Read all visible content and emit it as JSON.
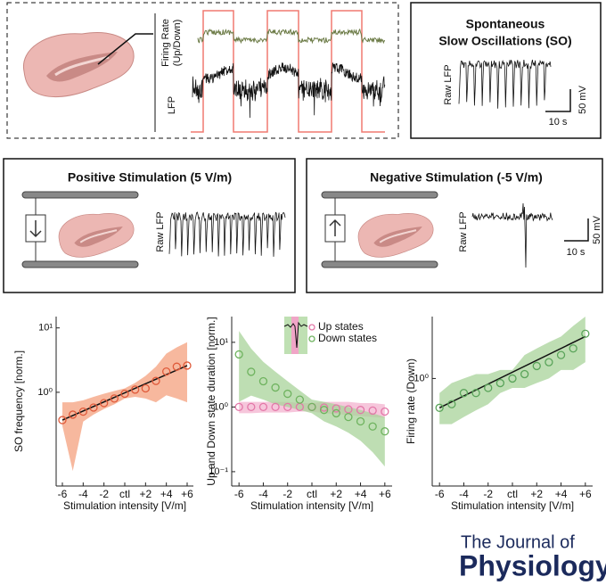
{
  "panels": {
    "overview": {
      "firing_rate_label": [
        "Firing Rate",
        "(Up/Down)"
      ],
      "lfp_label": "LFP"
    },
    "spontaneous": {
      "title_lines": [
        "Spontaneous",
        "Slow Oscillations (SO)"
      ],
      "trace_label": "Raw LFP",
      "scale_v": "50 mV",
      "scale_t": "10 s"
    },
    "positive": {
      "title": "Positive Stimulation (5 V/m)",
      "trace_label": "Raw LFP"
    },
    "negative": {
      "title": "Negative Stimulation (-5 V/m)",
      "trace_label": "Raw LFP",
      "scale_v": "50 mV",
      "scale_t": "10 s"
    }
  },
  "journal": {
    "line1": "The Journal of",
    "line2": "Physiology"
  },
  "chart_data": [
    {
      "type": "line",
      "ylabel": "SO frequency [norm.]",
      "xlabel": "Stimulation intensity [V/m]",
      "x": [
        -6,
        -5,
        -4,
        -3,
        -2,
        -1,
        0,
        1,
        2,
        3,
        4,
        5,
        6
      ],
      "values": [
        0.37,
        0.45,
        0.5,
        0.58,
        0.68,
        0.8,
        0.95,
        1.1,
        1.15,
        1.5,
        2.1,
        2.5,
        2.6
      ],
      "lower": [
        0.3,
        0.06,
        0.35,
        0.45,
        0.55,
        0.65,
        0.8,
        0.85,
        0.8,
        0.7,
        0.9,
        0.8,
        0.7
      ],
      "upper": [
        0.7,
        0.7,
        0.75,
        0.85,
        0.95,
        1.05,
        1.15,
        1.4,
        1.8,
        2.5,
        4,
        5,
        6
      ],
      "color": "#e05a3a",
      "band_color": "#f4a07e",
      "fit": {
        "x": [
          -6,
          6
        ],
        "values": [
          0.37,
          2.6
        ]
      },
      "xlim": [
        -6.6,
        6.6
      ],
      "ylim": [
        0.035,
        15
      ],
      "ylog": true,
      "xticks": [
        -6,
        -4,
        -2,
        {
          "value": 0,
          "label": "ctl"
        },
        {
          "value": 2,
          "label": "+2"
        },
        {
          "value": 4,
          "label": "+4"
        },
        {
          "value": 6,
          "label": "+6"
        }
      ],
      "yticks": [
        {
          "value": 10,
          "label": "10¹"
        },
        {
          "value": 1,
          "label": "10⁰"
        }
      ]
    },
    {
      "type": "line",
      "ylabel": "Up and Down state duration [norm.]",
      "xlabel": "Stimulation intensity [V/m]",
      "x": [
        -6,
        -5,
        -4,
        -3,
        -2,
        -1,
        0,
        1,
        2,
        3,
        4,
        5,
        6
      ],
      "series": [
        {
          "name": "Up states",
          "color": "#e377a8",
          "band_color": "#f3b3cf",
          "values": [
            1.0,
            1.0,
            1.0,
            1.0,
            1.0,
            1.0,
            1.0,
            0.98,
            0.95,
            0.92,
            0.9,
            0.88,
            0.85
          ],
          "lower": [
            0.8,
            0.8,
            0.82,
            0.82,
            0.82,
            0.85,
            0.85,
            0.8,
            0.78,
            0.75,
            0.72,
            0.7,
            0.68
          ],
          "upper": [
            1.2,
            1.2,
            1.2,
            1.2,
            1.2,
            1.15,
            1.15,
            1.2,
            1.2,
            1.2,
            1.15,
            1.15,
            1.1
          ]
        },
        {
          "name": "Down states",
          "color": "#6fb35f",
          "band_color": "#a8d39a",
          "values": [
            6.5,
            3.5,
            2.5,
            2.0,
            1.6,
            1.3,
            1.0,
            0.9,
            0.8,
            0.7,
            0.6,
            0.5,
            0.42
          ],
          "lower": [
            1.2,
            1.5,
            1.3,
            1.1,
            1.0,
            0.9,
            0.8,
            0.6,
            0.5,
            0.4,
            0.3,
            0.2,
            0.12
          ],
          "upper": [
            15,
            8,
            5,
            3.5,
            2.5,
            1.8,
            1.3,
            1.2,
            1.1,
            1.0,
            0.9,
            0.8,
            0.7
          ]
        }
      ],
      "legend": "top-right",
      "xlim": [
        -6.6,
        6.6
      ],
      "ylim": [
        0.06,
        25
      ],
      "ylog": true,
      "xticks": [
        -6,
        -4,
        -2,
        {
          "value": 0,
          "label": "ctl"
        },
        {
          "value": 2,
          "label": "+2"
        },
        {
          "value": 4,
          "label": "+4"
        },
        {
          "value": 6,
          "label": "+6"
        }
      ],
      "yticks": [
        {
          "value": 10,
          "label": "10¹"
        },
        {
          "value": 1,
          "label": "10⁰"
        },
        {
          "value": 0.1,
          "label": "10⁻¹"
        }
      ]
    },
    {
      "type": "line",
      "ylabel": "Firing rate (Down)",
      "xlabel": "Stimulation intensity [V/m]",
      "x": [
        -6,
        -5,
        -4,
        -3,
        -2,
        -1,
        0,
        1,
        2,
        3,
        4,
        5,
        6
      ],
      "values": [
        0.72,
        0.75,
        0.85,
        0.85,
        0.9,
        0.95,
        1.0,
        1.05,
        1.15,
        1.2,
        1.3,
        1.4,
        1.65
      ],
      "lower": [
        0.6,
        0.6,
        0.65,
        0.7,
        0.75,
        0.85,
        0.9,
        0.9,
        0.95,
        1.0,
        1.1,
        1.1,
        1.2
      ],
      "upper": [
        0.85,
        0.95,
        1.0,
        1.05,
        1.05,
        1.1,
        1.1,
        1.3,
        1.4,
        1.5,
        1.6,
        1.8,
        2.0
      ],
      "color": "#5aa45a",
      "band_color": "#a8d39a",
      "fit": {
        "x": [
          -6,
          6
        ],
        "values": [
          0.72,
          1.6
        ]
      },
      "xlim": [
        -6.6,
        6.6
      ],
      "ylim": [
        0.3,
        2
      ],
      "ylog": true,
      "xticks": [
        -6,
        -4,
        -2,
        {
          "value": 0,
          "label": "ctl"
        },
        {
          "value": 2,
          "label": "+2"
        },
        {
          "value": 4,
          "label": "+4"
        },
        {
          "value": 6,
          "label": "+6"
        }
      ],
      "yticks": [
        {
          "value": 1,
          "label": "10⁰"
        }
      ]
    }
  ]
}
